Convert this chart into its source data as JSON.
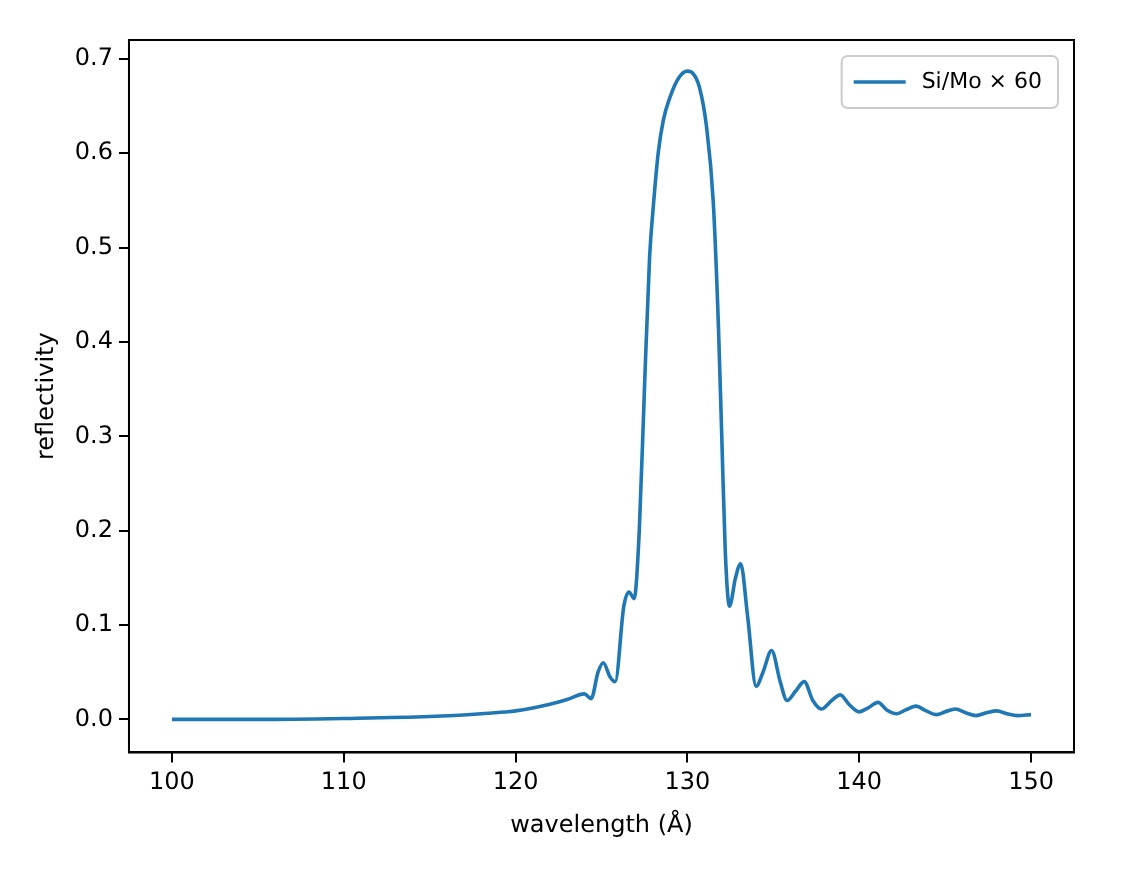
{
  "chart_data": {
    "type": "line",
    "xlabel": "wavelength (Å)",
    "ylabel": "reflectivity",
    "legend": "top right",
    "grid": false,
    "marker": "none",
    "line_style": "solid",
    "x": [
      100,
      105,
      110,
      115,
      118,
      120,
      122,
      123,
      124,
      124.4,
      124.8,
      125.1,
      125.5,
      125.8,
      126.3,
      126.6,
      126.9,
      127.2,
      127.5,
      127.8,
      128,
      128.3,
      128.6,
      129,
      129.5,
      130,
      130.3,
      130.7,
      131.1,
      131.5,
      131.8,
      132,
      132.2,
      132.45,
      132.8,
      133.1,
      133.5,
      134,
      134.4,
      134.9,
      135.4,
      135.8,
      136.3,
      136.8,
      137.3,
      137.8,
      138.4,
      138.9,
      139.4,
      140,
      140.5,
      141.1,
      141.6,
      142.2,
      142.7,
      143.3,
      143.9,
      144.5,
      145,
      145.6,
      146.2,
      146.8,
      147.4,
      148,
      148.6,
      149.2,
      150
    ],
    "series": [
      {
        "name": "Si/Mo × 60",
        "color": "#1f77b4",
        "values": [
          0.0,
          0.0,
          0.001,
          0.003,
          0.006,
          0.009,
          0.016,
          0.021,
          0.027,
          0.022,
          0.05,
          0.06,
          0.045,
          0.04,
          0.12,
          0.135,
          0.128,
          0.2,
          0.35,
          0.49,
          0.54,
          0.6,
          0.635,
          0.66,
          0.68,
          0.687,
          0.685,
          0.67,
          0.63,
          0.55,
          0.42,
          0.3,
          0.18,
          0.12,
          0.15,
          0.165,
          0.11,
          0.035,
          0.05,
          0.073,
          0.04,
          0.02,
          0.03,
          0.04,
          0.02,
          0.011,
          0.02,
          0.026,
          0.016,
          0.008,
          0.012,
          0.018,
          0.01,
          0.006,
          0.01,
          0.014,
          0.009,
          0.005,
          0.008,
          0.011,
          0.007,
          0.004,
          0.007,
          0.009,
          0.006,
          0.004,
          0.005
        ]
      }
    ],
    "xlim": [
      97.5,
      152.5
    ],
    "xticks": [
      100,
      110,
      120,
      130,
      140,
      150
    ],
    "ylim": [
      -0.035,
      0.72
    ],
    "yticks": [
      {
        "value": 0,
        "label": "0.0"
      },
      0.1,
      0.2,
      0.3,
      0.4,
      0.5,
      0.6,
      0.7
    ]
  }
}
